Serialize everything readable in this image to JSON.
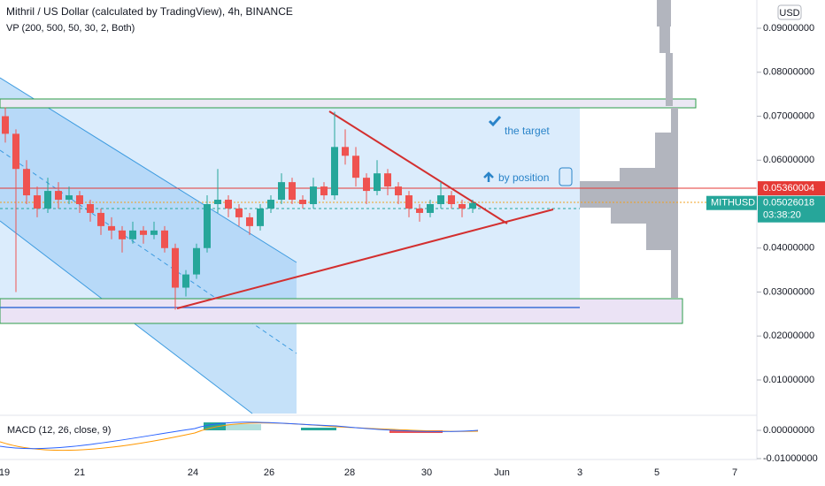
{
  "header": {
    "title": "Mithril / US Dollar (calculated by TradingView), 4h, BINANCE",
    "indicator": "VP (200, 500, 50, 30, 2, Both)",
    "currency": "USD"
  },
  "annotations": {
    "target": "the target",
    "position": "by position"
  },
  "macd": {
    "label": "MACD (12, 26, close, 9)",
    "ticks": [
      {
        "value": 0,
        "label": "0.00000000"
      },
      {
        "value": -0.01,
        "label": "-0.01000000"
      }
    ]
  },
  "chart": {
    "type": "candlestick",
    "yticks": [
      {
        "value": 0.09,
        "label": "0.09000000"
      },
      {
        "value": 0.08,
        "label": "0.08000000"
      },
      {
        "value": 0.07,
        "label": "0.07000000"
      },
      {
        "value": 0.06,
        "label": "0.06000000"
      },
      {
        "value": 0.04,
        "label": "0.04000000"
      },
      {
        "value": 0.03,
        "label": "0.03000000"
      },
      {
        "value": 0.02,
        "label": "0.02000000"
      },
      {
        "value": 0.01,
        "label": "0.01000000"
      }
    ],
    "xlabels": [
      "19",
      "21",
      "24",
      "26",
      "28",
      "30",
      "Jun",
      "3",
      "5",
      "7"
    ],
    "price_tags": {
      "high_line": 0.05360004,
      "symbol": "MITHUSD",
      "last": 0.05026018,
      "countdown": "03:38:20"
    },
    "up_color": "#26a69a",
    "down_color": "#ef5350",
    "candles": [
      [
        0.07,
        0.072,
        0.064,
        0.066
      ],
      [
        0.066,
        0.067,
        0.03,
        0.058
      ],
      [
        0.058,
        0.06,
        0.05,
        0.052
      ],
      [
        0.052,
        0.054,
        0.047,
        0.049
      ],
      [
        0.049,
        0.056,
        0.048,
        0.053
      ],
      [
        0.053,
        0.055,
        0.049,
        0.051
      ],
      [
        0.051,
        0.054,
        0.05,
        0.052
      ],
      [
        0.052,
        0.053,
        0.048,
        0.05
      ],
      [
        0.05,
        0.051,
        0.046,
        0.048
      ],
      [
        0.048,
        0.049,
        0.043,
        0.045
      ],
      [
        0.045,
        0.047,
        0.042,
        0.044
      ],
      [
        0.044,
        0.045,
        0.039,
        0.042
      ],
      [
        0.042,
        0.046,
        0.041,
        0.044
      ],
      [
        0.044,
        0.045,
        0.041,
        0.043
      ],
      [
        0.043,
        0.046,
        0.042,
        0.044
      ],
      [
        0.044,
        0.045,
        0.039,
        0.04
      ],
      [
        0.04,
        0.041,
        0.026,
        0.031
      ],
      [
        0.031,
        0.035,
        0.029,
        0.034
      ],
      [
        0.034,
        0.041,
        0.033,
        0.04
      ],
      [
        0.04,
        0.052,
        0.039,
        0.05
      ],
      [
        0.05,
        0.058,
        0.048,
        0.051
      ],
      [
        0.051,
        0.052,
        0.047,
        0.049
      ],
      [
        0.049,
        0.05,
        0.045,
        0.047
      ],
      [
        0.047,
        0.048,
        0.043,
        0.045
      ],
      [
        0.045,
        0.05,
        0.044,
        0.049
      ],
      [
        0.049,
        0.052,
        0.048,
        0.051
      ],
      [
        0.051,
        0.057,
        0.05,
        0.055
      ],
      [
        0.055,
        0.056,
        0.05,
        0.051
      ],
      [
        0.051,
        0.052,
        0.049,
        0.05
      ],
      [
        0.05,
        0.056,
        0.049,
        0.054
      ],
      [
        0.054,
        0.055,
        0.051,
        0.052
      ],
      [
        0.052,
        0.071,
        0.051,
        0.063
      ],
      [
        0.063,
        0.067,
        0.059,
        0.061
      ],
      [
        0.061,
        0.063,
        0.054,
        0.056
      ],
      [
        0.056,
        0.057,
        0.05,
        0.053
      ],
      [
        0.053,
        0.06,
        0.052,
        0.057
      ],
      [
        0.057,
        0.058,
        0.052,
        0.054
      ],
      [
        0.054,
        0.055,
        0.05,
        0.052
      ],
      [
        0.052,
        0.053,
        0.047,
        0.049
      ],
      [
        0.049,
        0.05,
        0.046,
        0.048
      ],
      [
        0.048,
        0.051,
        0.047,
        0.05
      ],
      [
        0.05,
        0.055,
        0.049,
        0.052
      ],
      [
        0.052,
        0.053,
        0.049,
        0.05
      ],
      [
        0.05,
        0.051,
        0.047,
        0.049
      ],
      [
        0.049,
        0.051,
        0.048,
        0.05026018
      ]
    ]
  }
}
